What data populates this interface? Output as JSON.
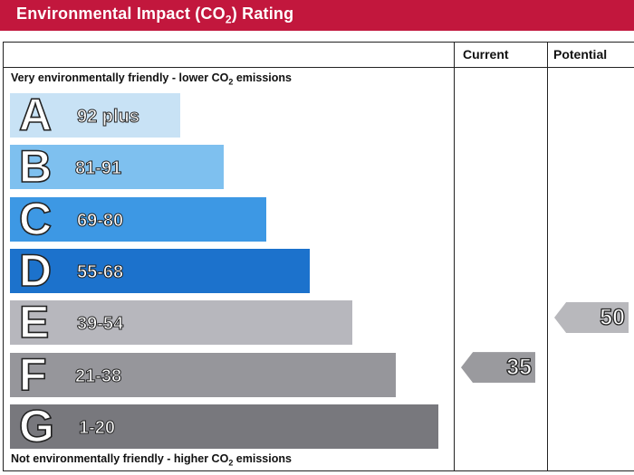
{
  "header": {
    "title_main": "Environmental Impact (CO",
    "title_sub": "2",
    "title_tail": ") Rating"
  },
  "columns": {
    "current": "Current",
    "potential": "Potential"
  },
  "captions": {
    "top_main": "Very environmentally friendly - lower CO",
    "top_sub": "2",
    "top_tail": " emissions",
    "bottom_main": "Not environmentally friendly - higher CO",
    "bottom_sub": "2",
    "bottom_tail": " emissions"
  },
  "chart_data": {
    "type": "bar",
    "title": "Environmental Impact (CO2) Rating",
    "bands": [
      {
        "letter": "A",
        "range": "92 plus",
        "min": 92,
        "max": 100,
        "color": "#c8e2f5"
      },
      {
        "letter": "B",
        "range": "81-91",
        "min": 81,
        "max": 91,
        "color": "#7ec0ef"
      },
      {
        "letter": "C",
        "range": "69-80",
        "min": 69,
        "max": 80,
        "color": "#3d98e4"
      },
      {
        "letter": "D",
        "range": "55-68",
        "min": 55,
        "max": 68,
        "color": "#1c72cc"
      },
      {
        "letter": "E",
        "range": "39-54",
        "min": 39,
        "max": 54,
        "color": "#b7b7bd"
      },
      {
        "letter": "F",
        "range": "21-38",
        "min": 21,
        "max": 38,
        "color": "#96969b"
      },
      {
        "letter": "G",
        "range": "1-20",
        "min": 1,
        "max": 20,
        "color": "#78787d"
      }
    ],
    "current": {
      "value": 35,
      "label": "35",
      "band": "F",
      "color": "#9a9a9e"
    },
    "potential": {
      "value": 50,
      "label": "50",
      "band": "E",
      "color": "#b8b8bc"
    }
  }
}
